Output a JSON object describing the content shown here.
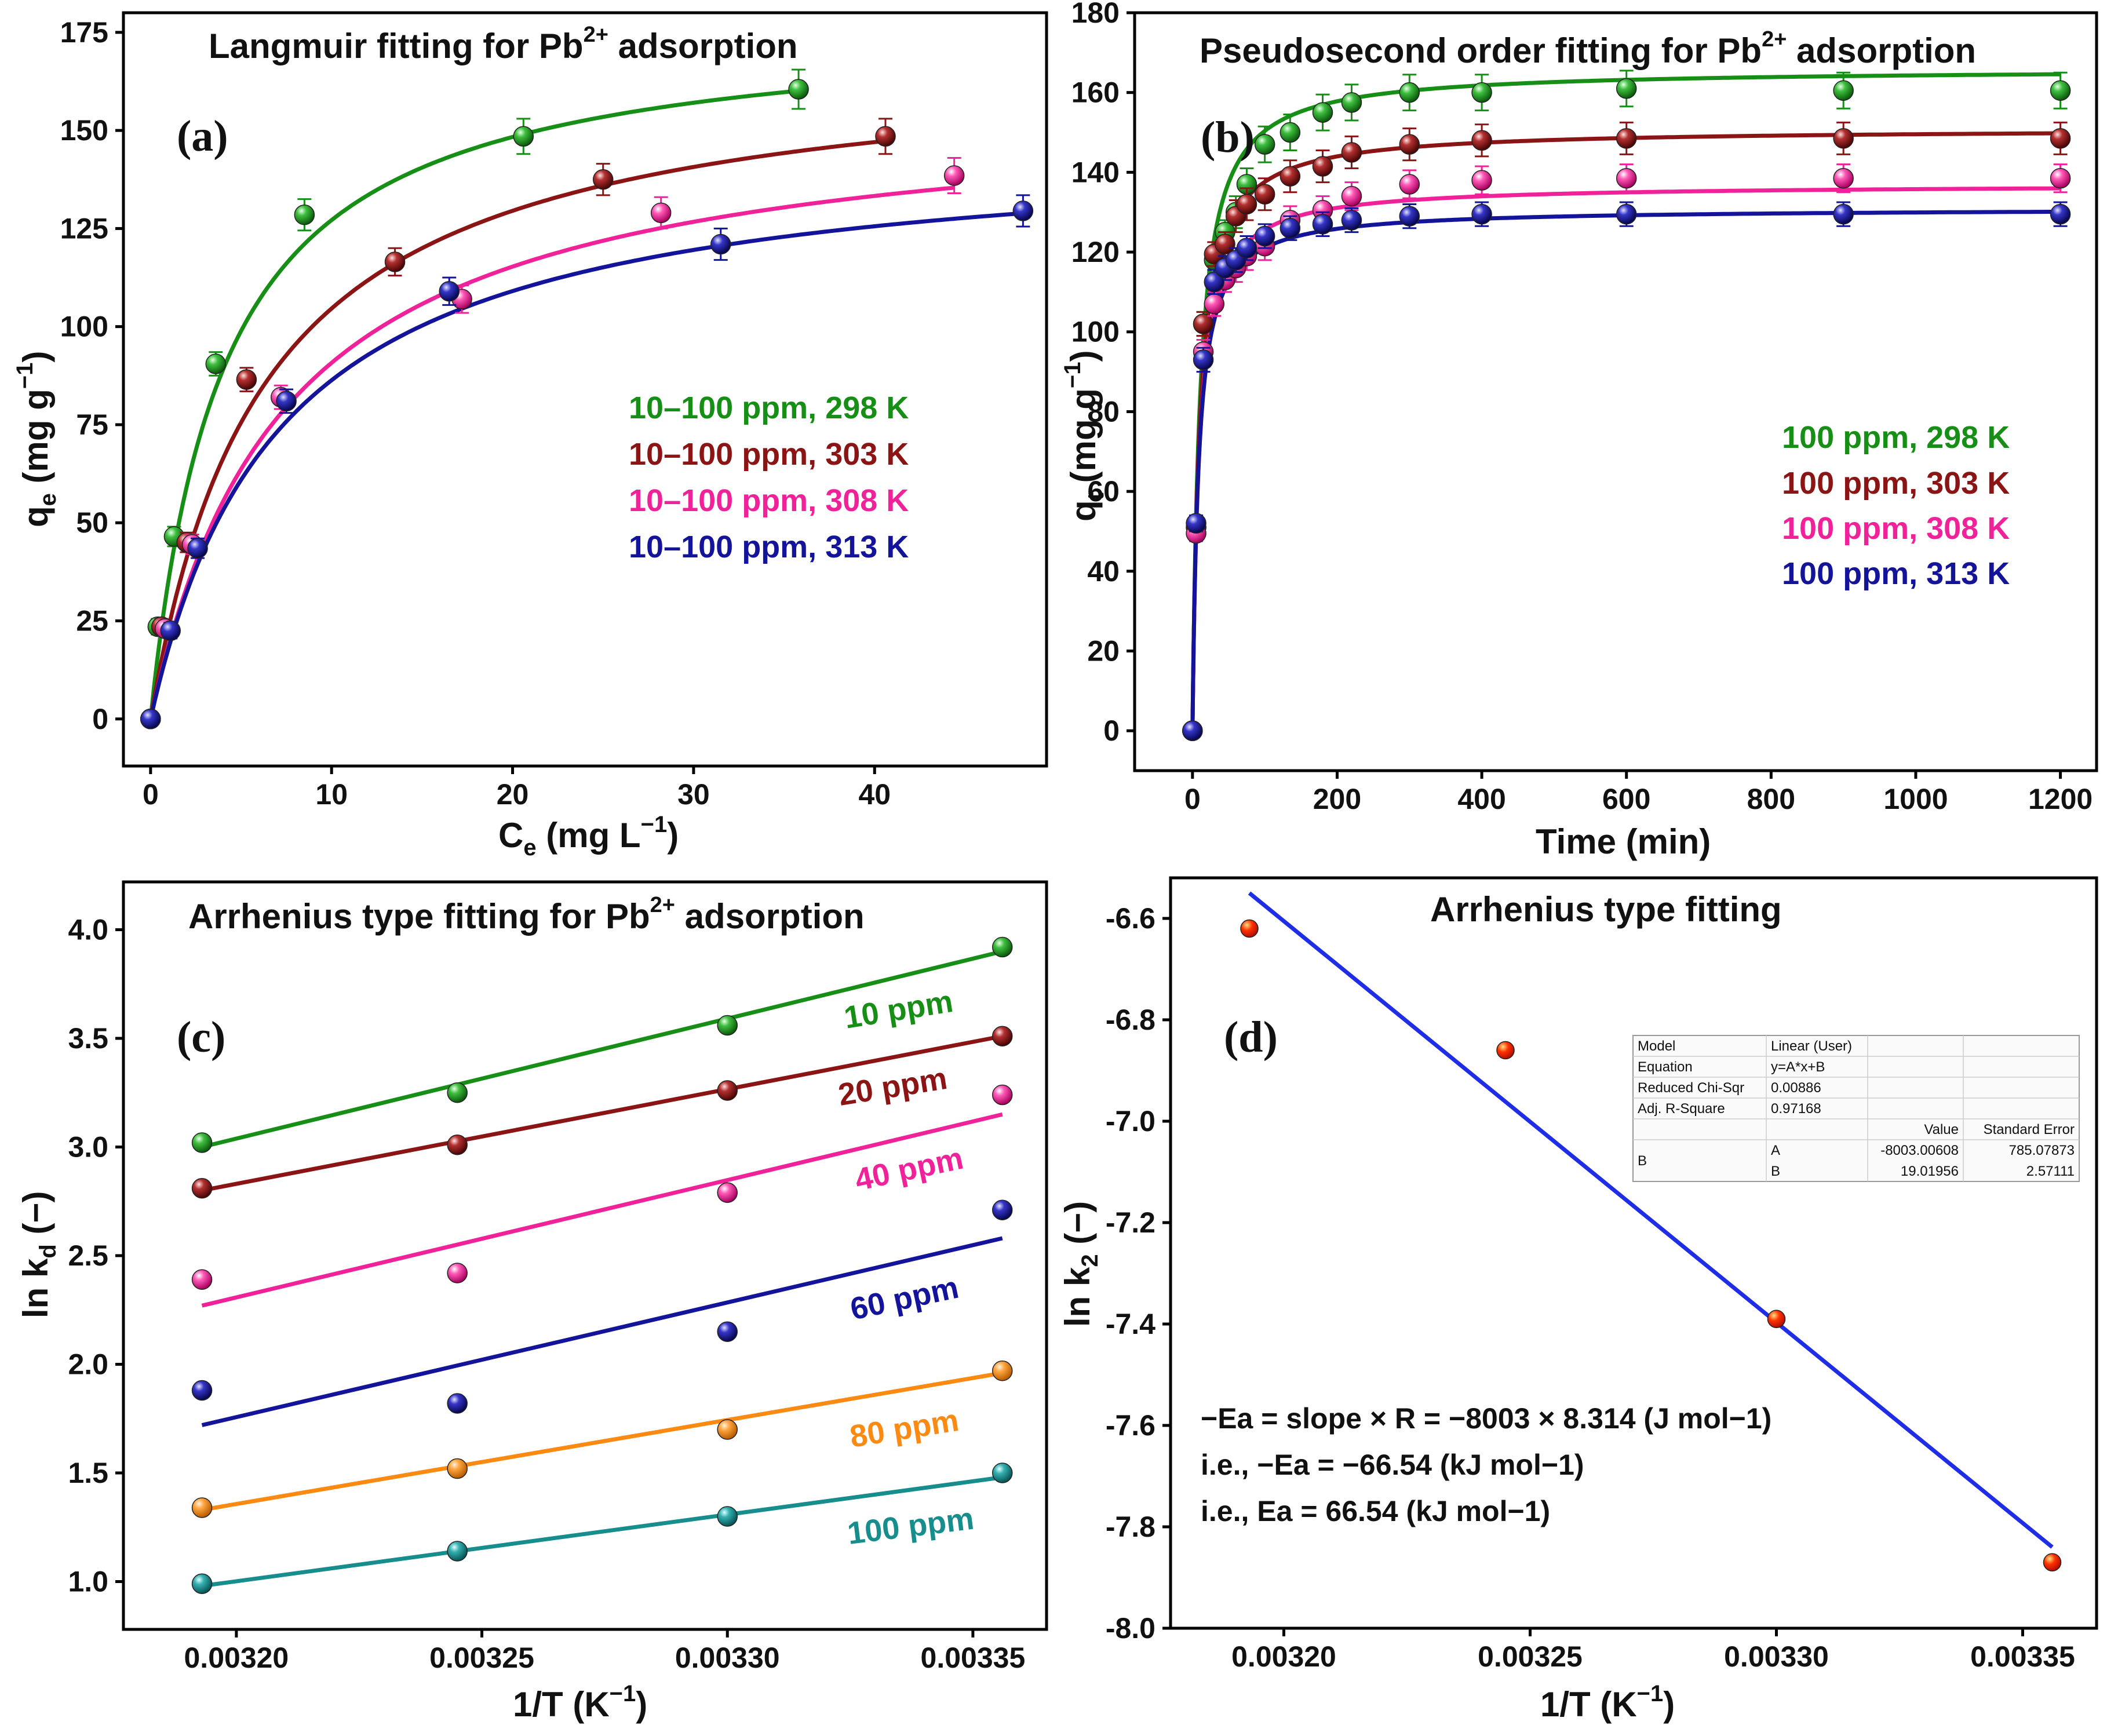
{
  "colors": {
    "g298": "#178f17",
    "r303": "#8b1414",
    "p308": "#f0229a",
    "b313": "#14149a",
    "orange": "#fb8a12",
    "teal": "#178d8d",
    "red_pt": "#ff2a00",
    "blue_line": "#1f2ee6"
  },
  "chart_data": [
    {
      "id": "a",
      "type": "scatter",
      "panel_label": "(a)",
      "title_main": "Langmuir fitting for Pb",
      "title_sup": "2+",
      "title_tail": " adsorption",
      "xlabel_main": "C",
      "xlabel_sub": "e",
      "xlabel_tail": " (mg L",
      "xlabel_sup": "−1",
      "xlabel_close": ")",
      "ylabel_main": "q",
      "ylabel_sub": "e",
      "ylabel_tail": " (mg g",
      "ylabel_sup": "−1",
      "ylabel_close": ")",
      "xlim": [
        -1.5,
        49.5
      ],
      "ylim": [
        -12,
        180
      ],
      "xticks": [
        0,
        10,
        20,
        30,
        40
      ],
      "yticks": [
        0,
        25,
        50,
        75,
        100,
        125,
        150,
        175
      ],
      "legend_location": "center-right",
      "series": [
        {
          "name": "10–100 ppm, 298 K",
          "color": "g298",
          "fit": {
            "qm": 178,
            "kl": 0.25
          },
          "x": [
            0,
            0.4,
            1.3,
            3.6,
            8.5,
            20.6,
            35.8
          ],
          "y": [
            0,
            23.5,
            46.5,
            90.5,
            128.5,
            148.5,
            160.5
          ],
          "err": [
            0,
            2,
            2.5,
            3,
            4,
            4.5,
            5
          ]
        },
        {
          "name": "10–100 ppm, 303 K",
          "color": "r303",
          "fit": {
            "qm": 170,
            "kl": 0.16
          },
          "x": [
            0,
            0.6,
            2,
            5.3,
            13.5,
            25,
            40.6
          ],
          "y": [
            0,
            23.5,
            45,
            86.5,
            116.5,
            137.5,
            148.5
          ],
          "err": [
            0,
            2,
            2.5,
            3,
            3.5,
            4,
            4.5
          ]
        },
        {
          "name": "10–100 ppm, 308 K",
          "color": "p308",
          "fit": {
            "qm": 158,
            "kl": 0.135
          },
          "x": [
            0,
            0.8,
            2.3,
            7.2,
            17.2,
            28.2,
            44.4
          ],
          "y": [
            0,
            23,
            44.5,
            82,
            107,
            129,
            138.5
          ],
          "err": [
            0,
            2,
            2.5,
            3,
            3.5,
            4,
            4.5
          ]
        },
        {
          "name": "10–100 ppm, 313 K",
          "color": "b313",
          "fit": {
            "qm": 148,
            "kl": 0.14
          },
          "x": [
            0,
            1.1,
            2.6,
            7.5,
            16.5,
            31.5,
            48.2
          ],
          "y": [
            0,
            22.5,
            43.5,
            81,
            109,
            121,
            129.5
          ],
          "err": [
            0,
            2,
            2.5,
            3,
            3.5,
            4,
            4
          ]
        }
      ]
    },
    {
      "id": "b",
      "type": "scatter",
      "panel_label": "(b)",
      "title_main": "Pseudosecond order fitting for Pb",
      "title_sup": "2+",
      "title_tail": " adsorption",
      "xlabel_main": "Time (min)",
      "ylabel_main": "q",
      "ylabel_sub": "t",
      "ylabel_tail": " (mg g",
      "ylabel_sup": "−1",
      "ylabel_close": ")",
      "xlim": [
        -80,
        1250
      ],
      "ylim": [
        -10,
        180
      ],
      "xticks": [
        0,
        200,
        400,
        600,
        800,
        1000,
        1200
      ],
      "yticks": [
        0,
        20,
        40,
        60,
        80,
        100,
        120,
        140,
        160,
        180
      ],
      "legend_location": "center-right",
      "series": [
        {
          "name": "100 ppm, 298 K",
          "color": "g298",
          "fit": {
            "qe": 166,
            "k2": 0.00058
          },
          "x": [
            0,
            5,
            15,
            30,
            45,
            60,
            75,
            100,
            135,
            180,
            220,
            300,
            400,
            600,
            900,
            1200
          ],
          "y": [
            0,
            51,
            102,
            118,
            125,
            130,
            137,
            147,
            150,
            155,
            157.5,
            160,
            160,
            161,
            160.5,
            160.5
          ],
          "err": [
            0,
            2,
            3,
            3,
            3,
            4,
            4,
            4.5,
            4.5,
            4.5,
            4.5,
            4.5,
            4.5,
            4.5,
            4.5,
            4.5
          ]
        },
        {
          "name": "100 ppm, 303 K",
          "color": "r303",
          "fit": {
            "qe": 151,
            "k2": 0.00068
          },
          "x": [
            0,
            5,
            15,
            30,
            45,
            60,
            75,
            100,
            135,
            180,
            220,
            300,
            400,
            600,
            900,
            1200
          ],
          "y": [
            0,
            51,
            102,
            119.5,
            122,
            129,
            132,
            134.5,
            139,
            141.5,
            145,
            147,
            148,
            148.5,
            148.5,
            148.5
          ],
          "err": [
            0,
            2,
            3,
            3,
            3,
            4,
            4,
            4,
            4,
            4,
            4,
            4,
            4,
            4,
            4,
            4
          ]
        },
        {
          "name": "100 ppm, 308 K",
          "color": "p308",
          "fit": {
            "qe": 137,
            "k2": 0.00081
          },
          "x": [
            0,
            5,
            15,
            30,
            45,
            60,
            75,
            100,
            135,
            180,
            220,
            300,
            400,
            600,
            900,
            1200
          ],
          "y": [
            0,
            49.5,
            95,
            107,
            113,
            116,
            119,
            121.5,
            128,
            130.5,
            134,
            137,
            138,
            138.5,
            138.5,
            138.5
          ],
          "err": [
            0,
            2,
            3,
            3,
            3,
            3.5,
            3.5,
            3.5,
            3.5,
            3.5,
            3.5,
            3.5,
            3.5,
            3.5,
            3.5,
            3.5
          ]
        },
        {
          "name": "100 ppm, 313 K",
          "color": "b313",
          "fit": {
            "qe": 131,
            "k2": 0.00093
          },
          "x": [
            0,
            5,
            15,
            30,
            45,
            60,
            75,
            100,
            135,
            180,
            220,
            300,
            400,
            600,
            900,
            1200
          ],
          "y": [
            0,
            52,
            93,
            112.5,
            116,
            118,
            121,
            124,
            126,
            127,
            128,
            129,
            129.5,
            129.5,
            129.5,
            129.5
          ],
          "err": [
            0,
            2,
            3,
            3,
            3,
            3,
            3,
            3,
            3,
            3,
            3,
            3,
            3,
            3,
            3,
            3
          ]
        }
      ]
    },
    {
      "id": "c",
      "type": "scatter",
      "panel_label": "(c)",
      "title_main": "Arrhenius type fitting for Pb",
      "title_sup": "2+",
      "title_tail": " adsorption",
      "xlabel_main": "1/T (K",
      "xlabel_sup": "−1",
      "xlabel_close": ")",
      "ylabel_main": "ln k",
      "ylabel_sub": "d",
      "ylabel_tail": " (−)",
      "xlim": [
        0.003177,
        0.003365
      ],
      "ylim": [
        0.78,
        4.22
      ],
      "xticks": [
        "0.00320",
        "0.00325",
        "0.00330",
        "0.00335"
      ],
      "yticks": [
        "1.0",
        "1.5",
        "2.0",
        "2.5",
        "3.0",
        "3.5",
        "4.0"
      ],
      "x": [
        0.003193,
        0.003245,
        0.0033,
        0.003356
      ],
      "series": [
        {
          "name": "10 ppm",
          "color": "g298",
          "y": [
            3.02,
            3.25,
            3.56,
            3.92
          ],
          "fit": [
            3.0,
            3.9
          ]
        },
        {
          "name": "20 ppm",
          "color": "r303",
          "y": [
            2.81,
            3.01,
            3.26,
            3.51
          ],
          "fit": [
            2.8,
            3.51
          ]
        },
        {
          "name": "40 ppm",
          "color": "p308",
          "y": [
            2.39,
            2.42,
            2.79,
            3.24
          ],
          "fit": [
            2.27,
            3.15
          ]
        },
        {
          "name": "60 ppm",
          "color": "b313",
          "y": [
            1.88,
            1.82,
            2.15,
            2.71
          ],
          "fit": [
            1.72,
            2.58
          ]
        },
        {
          "name": "80 ppm",
          "color": "orange",
          "y": [
            1.34,
            1.52,
            1.7,
            1.97
          ],
          "fit": [
            1.33,
            1.96
          ]
        },
        {
          "name": "100 ppm",
          "color": "teal",
          "y": [
            0.99,
            1.14,
            1.3,
            1.5
          ],
          "fit": [
            0.98,
            1.48
          ]
        }
      ]
    },
    {
      "id": "d",
      "type": "scatter",
      "panel_label": "(d)",
      "title_main": "Arrhenius type fitting",
      "xlabel_main": "1/T (K",
      "xlabel_sup": "−1",
      "xlabel_close": ")",
      "ylabel_main": "ln k",
      "ylabel_sub": "2",
      "ylabel_tail": " (−)",
      "xlim": [
        0.003177,
        0.003365
      ],
      "ylim": [
        -8.0,
        -6.52
      ],
      "xticks": [
        "0.00320",
        "0.00325",
        "0.00330",
        "0.00335"
      ],
      "yticks": [
        "-8.0",
        "-7.8",
        "-7.6",
        "-7.4",
        "-7.2",
        "-7.0",
        "-6.8",
        "-6.6"
      ],
      "x": [
        0.003193,
        0.003245,
        0.0033,
        0.003356
      ],
      "y": [
        -6.62,
        -6.86,
        -7.39,
        -7.87
      ],
      "fit": {
        "x": [
          0.003193,
          0.003356
        ],
        "y": [
          -6.55,
          -7.84
        ]
      },
      "notes": [
        "−Ea = slope × R = −8003 × 8.314 (J mol−1)",
        "i.e., −Ea = −66.54 (kJ mol−1)",
        "i.e., Ea = 66.54 (kJ mol−1)"
      ],
      "fit_table": {
        "rows": [
          [
            "Model",
            "Linear (User)",
            "",
            ""
          ],
          [
            "Equation",
            "y=A*x+B",
            "",
            ""
          ],
          [
            "Reduced Chi-Sqr",
            "0.00886",
            "",
            ""
          ],
          [
            "Adj. R-Square",
            "0.97168",
            "",
            ""
          ],
          [
            "",
            "",
            "Value",
            "Standard Error"
          ],
          [
            "B",
            "A",
            "-8003.00608",
            "785.07873"
          ],
          [
            "",
            "B",
            "19.01956",
            "2.57111"
          ]
        ]
      }
    }
  ]
}
